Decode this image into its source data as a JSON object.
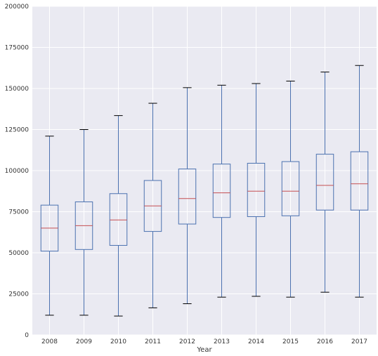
{
  "chart_data": {
    "type": "box",
    "title": "",
    "xlabel": "Year",
    "ylabel": "",
    "ylim": [
      0,
      200000
    ],
    "yticks": [
      0,
      25000,
      50000,
      75000,
      100000,
      125000,
      150000,
      175000,
      200000
    ],
    "grid": true,
    "categories": [
      "2008",
      "2009",
      "2010",
      "2011",
      "2012",
      "2013",
      "2014",
      "2015",
      "2016",
      "2017"
    ],
    "boxes": [
      {
        "category": "2008",
        "whisker_low": 12000,
        "q1": 51000,
        "median": 65000,
        "q3": 79000,
        "whisker_high": 121000
      },
      {
        "category": "2009",
        "whisker_low": 12000,
        "q1": 52000,
        "median": 66500,
        "q3": 81000,
        "whisker_high": 125000
      },
      {
        "category": "2010",
        "whisker_low": 11500,
        "q1": 54500,
        "median": 70000,
        "q3": 86000,
        "whisker_high": 133500
      },
      {
        "category": "2011",
        "whisker_low": 16500,
        "q1": 63000,
        "median": 78500,
        "q3": 94000,
        "whisker_high": 141000
      },
      {
        "category": "2012",
        "whisker_low": 19000,
        "q1": 67500,
        "median": 83000,
        "q3": 101000,
        "whisker_high": 150500
      },
      {
        "category": "2013",
        "whisker_low": 23000,
        "q1": 71500,
        "median": 86500,
        "q3": 104000,
        "whisker_high": 152000
      },
      {
        "category": "2014",
        "whisker_low": 23500,
        "q1": 72000,
        "median": 87500,
        "q3": 104500,
        "whisker_high": 153000
      },
      {
        "category": "2015",
        "whisker_low": 23000,
        "q1": 72500,
        "median": 87500,
        "q3": 105500,
        "whisker_high": 154500
      },
      {
        "category": "2016",
        "whisker_low": 26000,
        "q1": 76000,
        "median": 91000,
        "q3": 110000,
        "whisker_high": 160000
      },
      {
        "category": "2017",
        "whisker_low": 23000,
        "q1": 76000,
        "median": 92000,
        "q3": 111500,
        "whisker_high": 164000
      }
    ]
  },
  "colors": {
    "plot_background": "#EAEAF2",
    "grid": "#FFFFFF",
    "box": "#4C72B0",
    "median": "#C44E52",
    "cap": "#000000",
    "text": "#333333"
  }
}
